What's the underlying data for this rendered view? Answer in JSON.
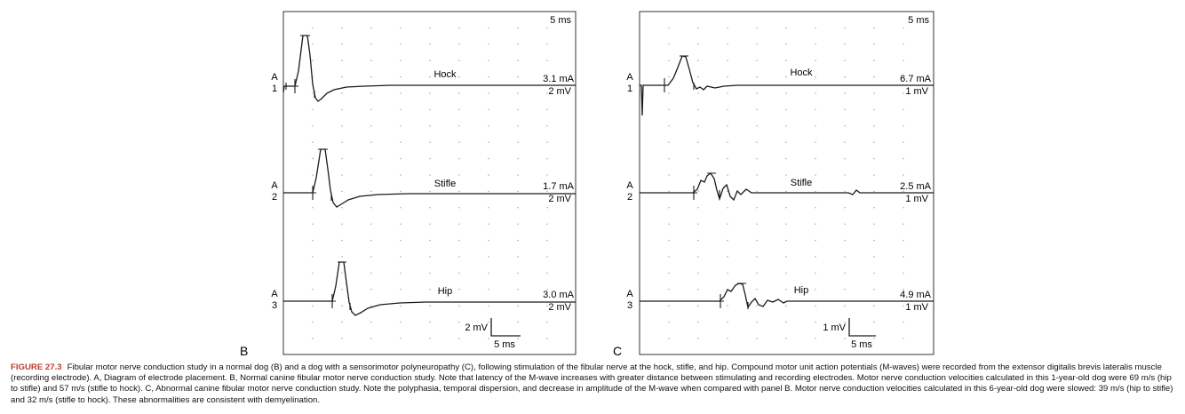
{
  "figure": {
    "panels": [
      {
        "label": "B",
        "time_scale_top": "5 ms",
        "scale_bar": {
          "voltage": "2 mV",
          "time": "5 ms"
        },
        "traces": [
          {
            "channel": "A",
            "index": "1",
            "site": "Hock",
            "current": "3.1 mA",
            "gain": "2 mV"
          },
          {
            "channel": "A",
            "index": "2",
            "site": "Stifle",
            "current": "1.7 mA",
            "gain": "2 mV"
          },
          {
            "channel": "A",
            "index": "3",
            "site": "Hip",
            "current": "3.0 mA",
            "gain": "2 mV"
          }
        ]
      },
      {
        "label": "C",
        "time_scale_top": "5 ms",
        "scale_bar": {
          "voltage": "1 mV",
          "time": "5 ms"
        },
        "traces": [
          {
            "channel": "A",
            "index": "1",
            "site": "Hock",
            "current": "6.7 mA",
            "gain": "1 mV"
          },
          {
            "channel": "A",
            "index": "2",
            "site": "Stifle",
            "current": "2.5 mA",
            "gain": "1 mV"
          },
          {
            "channel": "A",
            "index": "3",
            "site": "Hip",
            "current": "4.9 mA",
            "gain": "1 mV"
          }
        ]
      }
    ]
  },
  "caption": {
    "label": "FIGURE 27.3",
    "text": "Fibular motor nerve conduction study in a normal dog (B) and a dog with a sensorimotor polyneuropathy (C), following stimulation of the fibular nerve at the hock, stifle, and hip. Compound motor unit action potentials (M-waves) were recorded from the extensor digitalis brevis lateralis muscle (recording electrode). A, Diagram of electrode placement. B, Normal canine fibular motor nerve conduction study. Note that latency of the M-wave increases with greater distance between stimulating and recording electrodes. Motor nerve conduction velocities calculated in this 1-year-old dog were 69 m/s (hip to stifle) and 57 m/s (stifle to hock). C, Abnormal canine fibular motor nerve conduction study. Note the polyphasia, temporal dispersion, and decrease in amplitude of the M-wave when compared with panel B. Motor nerve conduction velocities calculated in this 6-year-old dog were slowed: 39 m/s (hip to stifle) and 32 m/s (stifle to hock). These abnormalities are consistent with demyelination."
  },
  "colors": {
    "trace": "#1a1a1a",
    "frame": "#333333",
    "dots": "#9a9a9a",
    "caption_label": "#c0392b"
  }
}
